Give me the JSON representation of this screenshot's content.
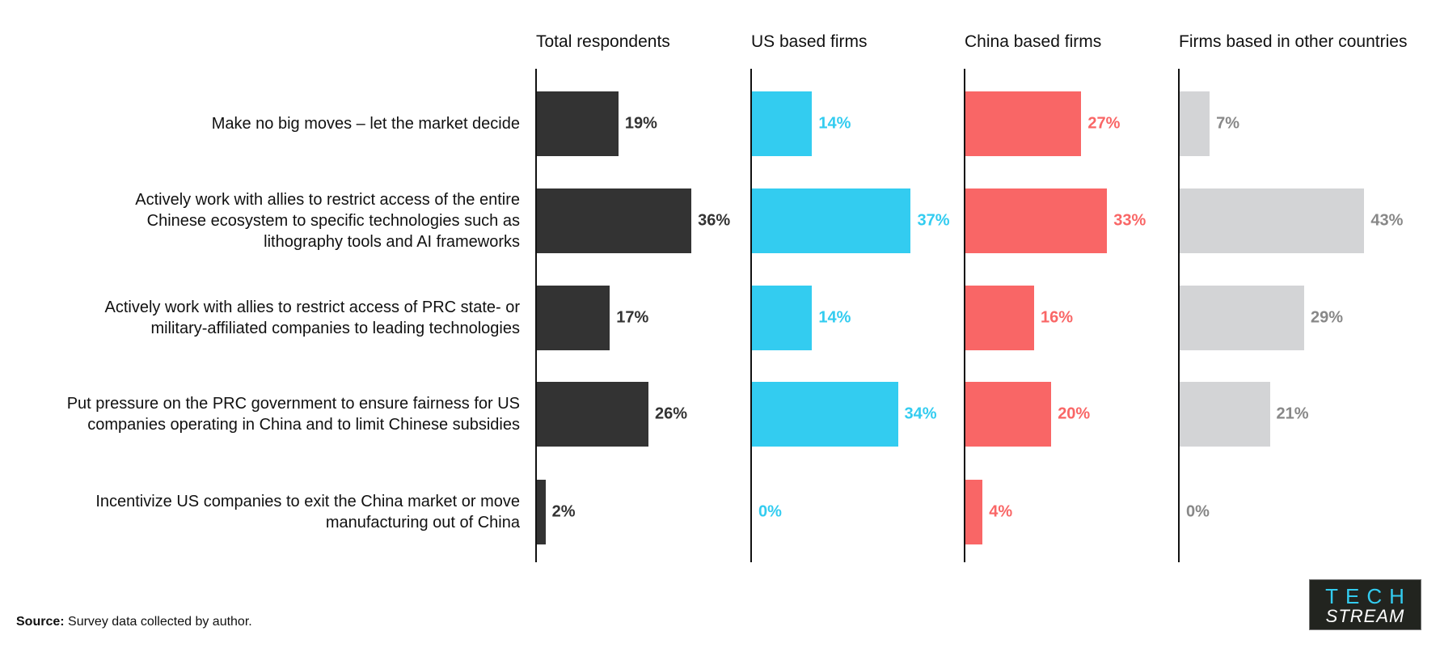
{
  "chart_data": {
    "type": "bar",
    "orientation": "horizontal",
    "categories": [
      "Make no big moves – let the market decide",
      "Actively work with allies to restrict access of the entire Chinese ecosystem to specific technologies such as lithography tools and AI frameworks",
      "Actively work with allies to restrict access of PRC state- or military-affiliated companies to leading technologies",
      "Put pressure on the PRC government to ensure fairness for US companies operating in China and to limit Chinese subsidies",
      "Incentivize US companies to exit the China market or move manufacturing out of China"
    ],
    "category_lines": [
      [
        "Make no big moves – let the market decide"
      ],
      [
        "Actively work with allies to restrict access of the entire",
        "Chinese ecosystem to specific technologies such as",
        "lithography tools and AI frameworks"
      ],
      [
        "Actively work with allies to restrict access of PRC state- or",
        "military-affiliated companies to leading technologies"
      ],
      [
        "Put pressure on the PRC government to ensure fairness for US",
        "companies operating in China and to limit Chinese subsidies"
      ],
      [
        "Incentivize US companies to exit the China market or move",
        "manufacturing out of China"
      ]
    ],
    "series": [
      {
        "name": "Total respondents",
        "values": [
          19,
          36,
          17,
          26,
          2
        ],
        "color": "#333333",
        "label_color": "#333333"
      },
      {
        "name": "US based firms",
        "values": [
          14,
          37,
          14,
          34,
          0
        ],
        "color": "#33CCF0",
        "label_color": "#33CCF0"
      },
      {
        "name": "China based firms",
        "values": [
          27,
          33,
          16,
          20,
          4
        ],
        "color": "#F96666",
        "label_color": "#F96666"
      },
      {
        "name": "Firms based in other countries",
        "values": [
          7,
          43,
          29,
          21,
          0
        ],
        "color": "#D3D4D6",
        "label_color": "#888888"
      }
    ],
    "value_suffix": "%",
    "grid": false,
    "layout": "small-multiples"
  },
  "source": {
    "label": "Source:",
    "text": " Survey data collected by author."
  },
  "logo": {
    "line1": "TECH",
    "line2": "STREAM"
  }
}
